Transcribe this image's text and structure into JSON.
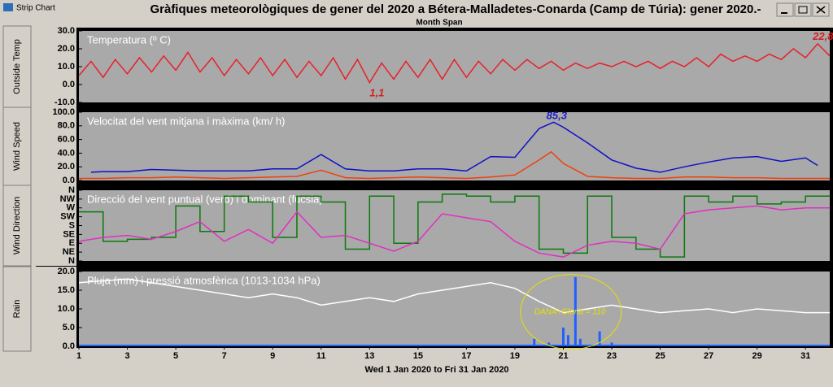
{
  "window": {
    "title": "Strip Chart"
  },
  "header": {
    "title": "Gràfiques meteorològiques de gener del 2020 a Bétera-Malladetes-Conarda (Camp de Túria): gener 2020.-",
    "subtitle": "Month Span"
  },
  "buttons": [
    "Outside Temp",
    "Wind Speed",
    "Wind Direction",
    "Rain"
  ],
  "x_axis": {
    "xlim": [
      1,
      32
    ],
    "xticks": [
      1,
      3,
      5,
      7,
      9,
      11,
      13,
      15,
      17,
      19,
      21,
      23,
      25,
      27,
      29,
      31
    ],
    "label": "Wed 1 Jan 2020  to  Fri 31 Jan 2020"
  },
  "chart_data": [
    {
      "type": "line",
      "title": "Temperatura (º C)",
      "ylim": [
        -10,
        30
      ],
      "yticks": [
        {
          "value": 30,
          "label": "30.0"
        },
        {
          "value": 20,
          "label": "20.0"
        },
        {
          "value": 10,
          "label": "10.0"
        },
        {
          "value": 0,
          "label": "0.0"
        },
        {
          "value": -10,
          "label": "-10.0"
        }
      ],
      "series": [
        {
          "color": "#e8202a",
          "style": "line",
          "x": [
            1,
            1.5,
            2,
            2.5,
            3,
            3.5,
            4,
            4.5,
            5,
            5.5,
            6,
            6.5,
            7,
            7.5,
            8,
            8.5,
            9,
            9.5,
            10,
            10.5,
            11,
            11.5,
            12,
            12.5,
            13,
            13.5,
            14,
            14.5,
            15,
            15.5,
            16,
            16.5,
            17,
            17.5,
            18,
            18.5,
            19,
            19.5,
            20,
            20.5,
            21,
            21.5,
            22,
            22.5,
            23,
            23.5,
            24,
            24.5,
            25,
            25.5,
            26,
            26.5,
            27,
            27.5,
            28,
            28.5,
            29,
            29.5,
            30,
            30.5,
            31,
            31.5,
            32
          ],
          "values": [
            5,
            13,
            4,
            14,
            6,
            15,
            7,
            16,
            8,
            18,
            7,
            15,
            5,
            14,
            6,
            15,
            5,
            14,
            4,
            13,
            5,
            15,
            3,
            14,
            1.1,
            12,
            3,
            13,
            4,
            14,
            3,
            14,
            4,
            13,
            6,
            14,
            8,
            14,
            9,
            13,
            8,
            12,
            9,
            12,
            10,
            13,
            10,
            13,
            9,
            13,
            10,
            15,
            10,
            17,
            13,
            16,
            13,
            17,
            14,
            20,
            15,
            22.8,
            16
          ]
        }
      ],
      "annotations": [
        {
          "text": "1,1",
          "x": 13,
          "y": -5,
          "color": "#d42020"
        },
        {
          "text": "22,8",
          "x": 31.3,
          "y": 26.5,
          "color": "#d42020"
        }
      ]
    },
    {
      "type": "line",
      "title": "Velocitat del vent mitjana i màxima (km/ h)",
      "ylim": [
        0,
        100
      ],
      "yticks": [
        {
          "value": 100,
          "label": "100.0"
        },
        {
          "value": 80,
          "label": "80.0"
        },
        {
          "value": 60,
          "label": "60.0"
        },
        {
          "value": 40,
          "label": "40.0"
        },
        {
          "value": 20,
          "label": "20.0"
        },
        {
          "value": 0,
          "label": "0.0"
        }
      ],
      "series": [
        {
          "color": "#1010c8",
          "style": "line",
          "x": [
            1.5,
            2,
            3,
            4,
            5,
            6,
            7,
            8,
            9,
            10,
            11,
            12,
            13,
            14,
            15,
            16,
            17,
            18,
            19,
            20,
            20.6,
            21,
            22,
            23,
            24,
            25,
            26,
            27,
            28,
            29,
            30,
            31,
            31.5
          ],
          "values": [
            12,
            13,
            13,
            16,
            15,
            14,
            14,
            14,
            17,
            17,
            38,
            17,
            14,
            14,
            17,
            17,
            14,
            35,
            34,
            76,
            85.3,
            78,
            55,
            30,
            18,
            12,
            20,
            27,
            33,
            35,
            28,
            33,
            22
          ]
        },
        {
          "color": "#f04010",
          "style": "line",
          "x": [
            1,
            2,
            3,
            4,
            5,
            6,
            7,
            8,
            9,
            10,
            11,
            12,
            13,
            14,
            15,
            16,
            17,
            18,
            19,
            20,
            20.5,
            21,
            22,
            23,
            24,
            25,
            26,
            27,
            28,
            29,
            30,
            31,
            32
          ],
          "values": [
            3,
            3,
            4,
            4,
            5,
            4,
            3,
            4,
            5,
            6,
            15,
            4,
            3,
            4,
            5,
            4,
            3,
            5,
            8,
            30,
            42,
            25,
            6,
            4,
            3,
            3,
            5,
            5,
            4,
            4,
            3,
            3,
            3
          ]
        }
      ],
      "annotations": [
        {
          "text": "85,3",
          "x": 20.3,
          "y": 94,
          "color": "#2020c0"
        }
      ]
    },
    {
      "type": "line",
      "title": "Direcció del vent puntual (verd) i dominant (fúcsia)",
      "ylim": [
        0,
        360
      ],
      "yticks": [
        {
          "value": 360,
          "label": "N"
        },
        {
          "value": 315,
          "label": "NW"
        },
        {
          "value": 270,
          "label": "W"
        },
        {
          "value": 225,
          "label": "SW"
        },
        {
          "value": 180,
          "label": "S"
        },
        {
          "value": 135,
          "label": "SE"
        },
        {
          "value": 90,
          "label": "E"
        },
        {
          "value": 45,
          "label": "NE"
        },
        {
          "value": 0,
          "label": "N"
        }
      ],
      "series": [
        {
          "color": "#0a7a0a",
          "style": "step",
          "x": [
            1,
            2,
            3,
            4,
            5,
            6,
            7,
            8,
            9,
            10,
            11,
            12,
            13,
            14,
            15,
            16,
            17,
            18,
            19,
            20,
            21,
            22,
            23,
            24,
            25,
            26,
            27,
            28,
            29,
            30,
            31,
            32
          ],
          "values": [
            250,
            100,
            110,
            120,
            280,
            150,
            330,
            300,
            120,
            330,
            300,
            60,
            330,
            90,
            300,
            340,
            330,
            300,
            330,
            60,
            40,
            330,
            120,
            60,
            20,
            330,
            300,
            330,
            290,
            300,
            330,
            330
          ]
        },
        {
          "color": "#e030c0",
          "style": "line",
          "x": [
            1,
            2,
            3,
            4,
            5,
            6,
            7,
            8,
            9,
            10,
            11,
            12,
            13,
            14,
            15,
            16,
            17,
            18,
            19,
            20,
            21,
            22,
            23,
            24,
            25,
            26,
            27,
            28,
            29,
            30,
            31,
            32
          ],
          "values": [
            100,
            120,
            130,
            110,
            150,
            200,
            100,
            160,
            90,
            250,
            120,
            130,
            90,
            50,
            100,
            240,
            220,
            200,
            100,
            40,
            20,
            80,
            100,
            90,
            60,
            240,
            260,
            270,
            280,
            260,
            270,
            270
          ]
        }
      ]
    },
    {
      "type": "line",
      "title": "Pluja (mm) i pressió atmosfèrica (1013-1034 hPa)",
      "ylim": [
        0,
        20
      ],
      "yticks": [
        {
          "value": 20,
          "label": "20.0"
        },
        {
          "value": 15,
          "label": "15.0"
        },
        {
          "value": 10,
          "label": "10.0"
        },
        {
          "value": 5,
          "label": "5.0"
        },
        {
          "value": 0,
          "label": "0.0"
        }
      ],
      "series": [
        {
          "color": "#ffffff",
          "style": "line",
          "x": [
            1,
            2,
            3,
            4,
            5,
            6,
            7,
            8,
            9,
            10,
            11,
            12,
            13,
            14,
            15,
            16,
            17,
            18,
            19,
            20,
            21,
            22,
            23,
            24,
            25,
            26,
            27,
            28,
            29,
            30,
            31,
            32
          ],
          "values": [
            17,
            17.5,
            18,
            17,
            16,
            15,
            14,
            13,
            14,
            13,
            11,
            12,
            13,
            12,
            14,
            15,
            16,
            17,
            15.5,
            12,
            9,
            10,
            11,
            10,
            9,
            9.5,
            10,
            9,
            10,
            9.5,
            9,
            9
          ]
        },
        {
          "color": "#2060ff",
          "style": "bar",
          "x": [
            19.8,
            20.4,
            21,
            21.2,
            21.5,
            21.7,
            22.5,
            23,
            27
          ],
          "values": [
            2,
            1,
            5,
            3,
            18.5,
            2,
            4,
            1,
            0.5
          ]
        }
      ],
      "annotations": [
        {
          "text": "DANA+Gloria = 110",
          "x": 19.8,
          "y": 9.2,
          "color": "#e8e000",
          "circled": true
        }
      ]
    }
  ]
}
